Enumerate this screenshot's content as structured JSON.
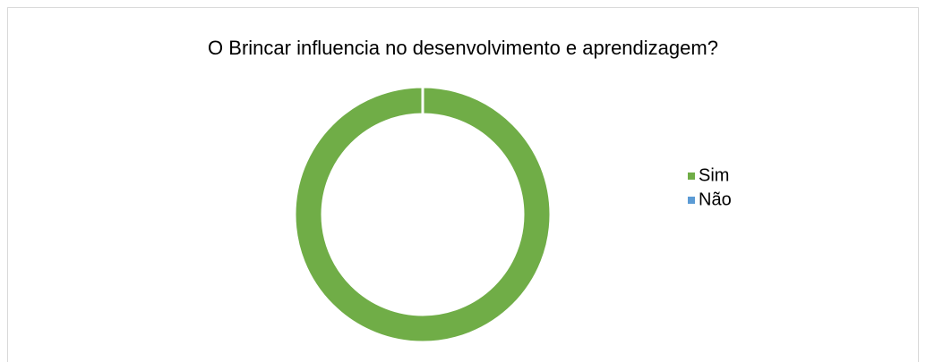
{
  "chart_data": {
    "type": "donut",
    "title": "O Brincar influencia no desenvolvimento e aprendizagem?",
    "categories": [
      "Sim",
      "Não"
    ],
    "values": [
      100,
      0
    ],
    "colors": [
      "#70ad47",
      "#5b9bd5"
    ],
    "legend": "right"
  }
}
